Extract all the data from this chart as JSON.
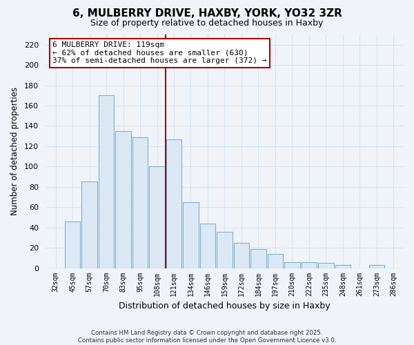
{
  "title": "6, MULBERRY DRIVE, HAXBY, YORK, YO32 3ZR",
  "subtitle": "Size of property relative to detached houses in Haxby",
  "xlabel": "Distribution of detached houses by size in Haxby",
  "ylabel": "Number of detached properties",
  "categories": [
    "32sqm",
    "45sqm",
    "57sqm",
    "70sqm",
    "83sqm",
    "95sqm",
    "108sqm",
    "121sqm",
    "134sqm",
    "146sqm",
    "159sqm",
    "172sqm",
    "184sqm",
    "197sqm",
    "210sqm",
    "222sqm",
    "235sqm",
    "248sqm",
    "261sqm",
    "273sqm",
    "286sqm"
  ],
  "values": [
    0,
    46,
    85,
    170,
    135,
    129,
    100,
    127,
    65,
    44,
    36,
    25,
    19,
    14,
    6,
    6,
    5,
    3,
    0,
    3,
    0
  ],
  "bar_color": "#dce9f5",
  "bar_edge_color": "#7ab0d4",
  "highlight_bar_index": 7,
  "vline_color": "#aa0000",
  "vline_x_bar": 6.5,
  "annotation_text": "6 MULBERRY DRIVE: 119sqm\n← 62% of detached houses are smaller (630)\n37% of semi-detached houses are larger (372) →",
  "annotation_box_facecolor": "#ffffff",
  "annotation_box_edgecolor": "#aa0000",
  "ylim": [
    0,
    230
  ],
  "yticks": [
    0,
    20,
    40,
    60,
    80,
    100,
    120,
    140,
    160,
    180,
    200,
    220
  ],
  "background_color": "#f0f4f9",
  "grid_color": "#d8e4f0",
  "footer_line1": "Contains HM Land Registry data © Crown copyright and database right 2025.",
  "footer_line2": "Contains public sector information licensed under the Open Government Licence v3.0."
}
